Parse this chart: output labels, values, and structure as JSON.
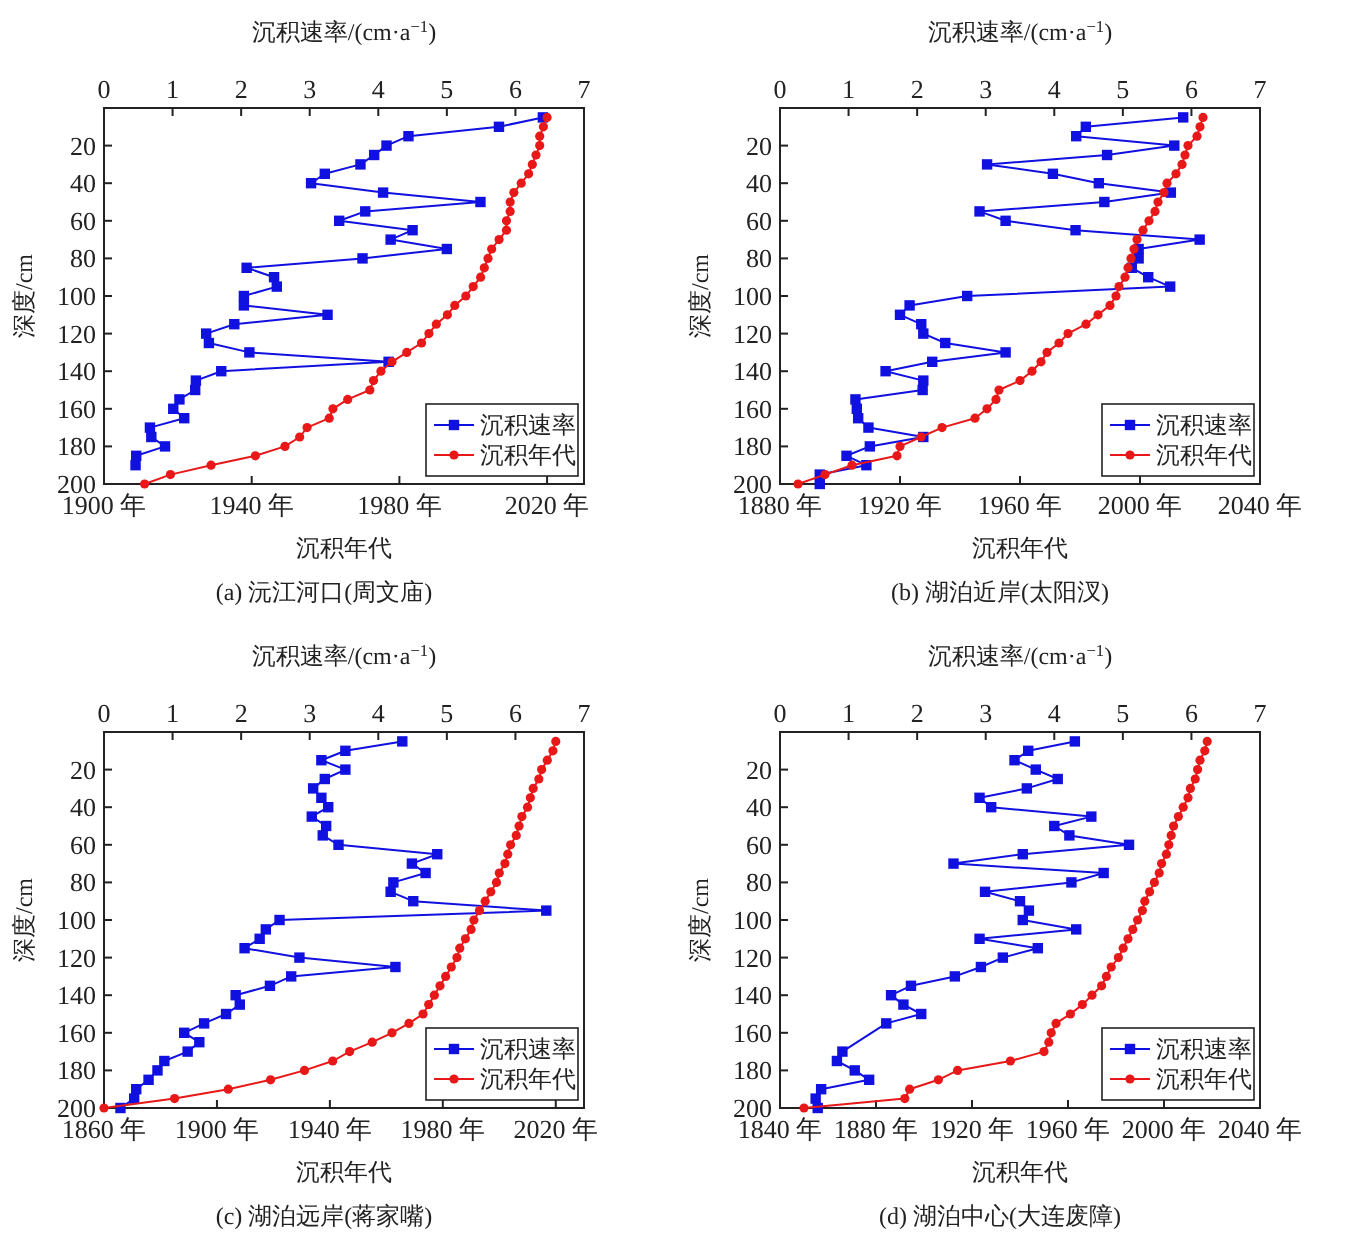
{
  "chart_data": [
    {
      "type": "line",
      "title": "(a) 沅江河口(周文庙)",
      "xlabel": "沉积年代",
      "x2label": "沉积速率/(cm·a$^{−1}$)",
      "ylabel": "深度/cm",
      "xlim": [
        1900,
        2030
      ],
      "xticks": [
        {
          "value": 1900,
          "label": "1900 年"
        },
        {
          "value": 1940,
          "label": "1940 年"
        },
        {
          "value": 1980,
          "label": "1980 年"
        },
        {
          "value": 2020,
          "label": "2020 年"
        }
      ],
      "x2lim": [
        0,
        7
      ],
      "x2ticks": [
        0,
        1,
        2,
        3,
        4,
        5,
        6,
        7
      ],
      "ylim": [
        200,
        0
      ],
      "yticks": [
        20,
        40,
        60,
        80,
        100,
        120,
        140,
        160,
        180,
        200
      ],
      "grid": false,
      "legend": "bottom right",
      "series": [
        {
          "name": "沉积速率",
          "color": "#1010e0",
          "axis": "x2",
          "marker": "square",
          "x": [
            6.4,
            5.76,
            4.44,
            4.12,
            3.94,
            3.74,
            3.22,
            3.02,
            4.07,
            5.49,
            3.81,
            3.43,
            4.5,
            4.18,
            5.0,
            3.77,
            2.08,
            2.48,
            2.52,
            2.04,
            2.04,
            3.26,
            1.9,
            1.49,
            1.53,
            2.12,
            4.15,
            1.71,
            1.34,
            1.33,
            1.1,
            1.01,
            1.17,
            0.67,
            0.69,
            0.89,
            0.47,
            0.46
          ],
          "values": [
            5,
            10,
            15,
            20,
            25,
            30,
            35,
            40,
            45,
            50,
            55,
            60,
            65,
            70,
            75,
            80,
            85,
            90,
            95,
            100,
            105,
            110,
            115,
            120,
            125,
            130,
            135,
            140,
            145,
            150,
            155,
            160,
            165,
            170,
            175,
            180,
            185,
            190
          ]
        },
        {
          "name": "沉积年代",
          "color": "#e81818",
          "marker": "circle",
          "x": [
            2020,
            2019,
            2018,
            2018,
            2017,
            2016,
            2015,
            2013,
            2011,
            2010,
            2010,
            2009,
            2009,
            2007,
            2005,
            2004,
            2003,
            2002,
            2000,
            1998,
            1995,
            1993,
            1990,
            1988,
            1986,
            1982,
            1978,
            1975,
            1973,
            1972,
            1966,
            1962,
            1961,
            1955,
            1953,
            1949,
            1941,
            1929,
            1918,
            1911
          ],
          "values": [
            5,
            10,
            15,
            20,
            25,
            30,
            35,
            40,
            45,
            50,
            55,
            60,
            65,
            70,
            75,
            80,
            85,
            90,
            95,
            100,
            105,
            110,
            115,
            120,
            125,
            130,
            135,
            140,
            145,
            150,
            155,
            160,
            165,
            170,
            175,
            180,
            185,
            190,
            195,
            200
          ]
        }
      ]
    },
    {
      "type": "line",
      "title": "(b) 湖泊近岸(太阳汊)",
      "xlabel": "沉积年代",
      "x2label": "沉积速率/(cm·a$^{−1}$)",
      "ylabel": "深度/cm",
      "xlim": [
        1880,
        2040
      ],
      "xticks": [
        {
          "value": 1880,
          "label": "1880 年"
        },
        {
          "value": 1920,
          "label": "1920 年"
        },
        {
          "value": 1960,
          "label": "1960 年"
        },
        {
          "value": 2000,
          "label": "2000 年"
        },
        {
          "value": 2040,
          "label": "2040 年"
        }
      ],
      "x2lim": [
        0,
        7
      ],
      "x2ticks": [
        0,
        1,
        2,
        3,
        4,
        5,
        6,
        7
      ],
      "ylim": [
        200,
        0
      ],
      "yticks": [
        20,
        40,
        60,
        80,
        100,
        120,
        140,
        160,
        180,
        200
      ],
      "grid": false,
      "legend": "bottom right",
      "series": [
        {
          "name": "沉积速率",
          "color": "#1010e0",
          "axis": "x2",
          "marker": "square",
          "x": [
            5.88,
            4.46,
            4.32,
            5.75,
            4.77,
            3.02,
            3.98,
            4.65,
            5.7,
            4.73,
            2.91,
            3.29,
            4.31,
            6.12,
            5.23,
            5.23,
            5.13,
            5.37,
            5.69,
            2.73,
            1.89,
            1.75,
            2.06,
            2.09,
            2.41,
            3.29,
            2.22,
            1.54,
            2.09,
            2.08,
            1.1,
            1.12,
            1.14,
            1.29,
            2.09,
            1.31,
            0.97,
            1.26,
            0.58,
            0.58
          ],
          "values": [
            5,
            10,
            15,
            20,
            25,
            30,
            35,
            40,
            45,
            50,
            55,
            60,
            65,
            70,
            75,
            80,
            85,
            90,
            95,
            100,
            105,
            110,
            115,
            120,
            125,
            130,
            135,
            140,
            145,
            150,
            155,
            160,
            165,
            170,
            175,
            180,
            185,
            190,
            195,
            200
          ]
        },
        {
          "name": "沉积年代",
          "color": "#e81818",
          "marker": "circle",
          "x": [
            2021,
            2020,
            2019,
            2016,
            2015,
            2014,
            2012,
            2009,
            2008,
            2006,
            2005,
            2003,
            2001,
            1999,
            1998,
            1997,
            1996,
            1995,
            1993,
            1992,
            1990,
            1986,
            1982,
            1976,
            1973,
            1969,
            1967,
            1964,
            1960,
            1953,
            1952,
            1949,
            1945,
            1934,
            1927,
            1920,
            1919,
            1904,
            1895,
            1886
          ],
          "values": [
            5,
            10,
            15,
            20,
            25,
            30,
            35,
            40,
            45,
            50,
            55,
            60,
            65,
            70,
            75,
            80,
            85,
            90,
            95,
            100,
            105,
            110,
            115,
            120,
            125,
            130,
            135,
            140,
            145,
            150,
            155,
            160,
            165,
            170,
            175,
            180,
            185,
            190,
            195,
            200
          ]
        }
      ]
    },
    {
      "type": "line",
      "title": "(c) 湖泊远岸(蒋家嘴)",
      "xlabel": "沉积年代",
      "x2label": "沉积速率/(cm·a$^{−1}$)",
      "ylabel": "深度/cm",
      "xlim": [
        1860,
        2030
      ],
      "xticks": [
        {
          "value": 1860,
          "label": "1860 年"
        },
        {
          "value": 1900,
          "label": "1900 年"
        },
        {
          "value": 1940,
          "label": "1940 年"
        },
        {
          "value": 1980,
          "label": "1980 年"
        },
        {
          "value": 2020,
          "label": "2020 年"
        }
      ],
      "x2lim": [
        0,
        7
      ],
      "x2ticks": [
        0,
        1,
        2,
        3,
        4,
        5,
        6,
        7
      ],
      "ylim": [
        200,
        0
      ],
      "yticks": [
        20,
        40,
        60,
        80,
        100,
        120,
        140,
        160,
        180,
        200
      ],
      "grid": false,
      "legend": "bottom right",
      "series": [
        {
          "name": "沉积速率",
          "color": "#1010e0",
          "axis": "x2",
          "marker": "square",
          "x": [
            4.35,
            3.52,
            3.17,
            3.52,
            3.22,
            3.05,
            3.17,
            3.27,
            3.03,
            3.24,
            3.19,
            3.42,
            4.86,
            4.49,
            4.69,
            4.22,
            4.18,
            4.51,
            6.45,
            2.56,
            2.36,
            2.27,
            2.05,
            2.85,
            4.25,
            2.73,
            2.42,
            1.92,
            1.98,
            1.78,
            1.46,
            1.17,
            1.39,
            1.22,
            0.88,
            0.78,
            0.65,
            0.47,
            0.44,
            0.24
          ],
          "values": [
            5,
            10,
            15,
            20,
            25,
            30,
            35,
            40,
            45,
            50,
            55,
            60,
            65,
            70,
            75,
            80,
            85,
            90,
            95,
            100,
            105,
            110,
            115,
            120,
            125,
            130,
            135,
            140,
            145,
            150,
            155,
            160,
            165,
            170,
            175,
            180,
            185,
            190,
            195,
            200
          ]
        },
        {
          "name": "沉积年代",
          "color": "#e81818",
          "marker": "circle",
          "x": [
            2020,
            2019,
            2017,
            2015,
            2014,
            2012,
            2011,
            2010,
            2008,
            2007,
            2006,
            2004,
            2003,
            2002,
            2000,
            1999,
            1997,
            1995,
            1993,
            1991,
            1990,
            1988,
            1986,
            1985,
            1983,
            1981,
            1979,
            1977,
            1975,
            1973,
            1968,
            1962,
            1955,
            1947,
            1941,
            1931,
            1919,
            1904,
            1885,
            1860
          ],
          "values": [
            5,
            10,
            15,
            20,
            25,
            30,
            35,
            40,
            45,
            50,
            55,
            60,
            65,
            70,
            75,
            80,
            85,
            90,
            95,
            100,
            105,
            110,
            115,
            120,
            125,
            130,
            135,
            140,
            145,
            150,
            155,
            160,
            165,
            170,
            175,
            180,
            185,
            190,
            195,
            200
          ]
        }
      ]
    },
    {
      "type": "line",
      "title": "(d) 湖泊中心(大连废障)",
      "xlabel": "沉积年代",
      "x2label": "沉积速率/(cm·a$^{−1}$)",
      "ylabel": "深度/cm",
      "xlim": [
        1840,
        2040
      ],
      "xticks": [
        {
          "value": 1840,
          "label": "1840 年"
        },
        {
          "value": 1880,
          "label": "1880 年"
        },
        {
          "value": 1920,
          "label": "1920 年"
        },
        {
          "value": 1960,
          "label": "1960 年"
        },
        {
          "value": 2000,
          "label": "2000 年"
        },
        {
          "value": 2040,
          "label": "2040 年"
        }
      ],
      "x2lim": [
        0,
        7
      ],
      "x2ticks": [
        0,
        1,
        2,
        3,
        4,
        5,
        6,
        7
      ],
      "ylim": [
        200,
        0
      ],
      "yticks": [
        20,
        40,
        60,
        80,
        100,
        120,
        140,
        160,
        180,
        200
      ],
      "grid": false,
      "legend": "bottom right",
      "series": [
        {
          "name": "沉积速率",
          "color": "#1010e0",
          "axis": "x2",
          "marker": "square",
          "x": [
            4.3,
            3.62,
            3.42,
            3.73,
            4.05,
            3.6,
            2.91,
            3.08,
            4.54,
            4.0,
            4.22,
            5.09,
            3.54,
            2.53,
            4.72,
            4.25,
            2.99,
            3.5,
            3.63,
            3.54,
            4.32,
            2.91,
            3.76,
            3.25,
            2.93,
            2.55,
            1.91,
            1.62,
            1.8,
            2.06,
            1.55,
            0.91,
            0.83,
            1.09,
            1.3,
            0.6,
            0.52,
            0.55
          ],
          "values": [
            5,
            10,
            15,
            20,
            25,
            30,
            35,
            40,
            45,
            50,
            55,
            60,
            65,
            70,
            75,
            80,
            85,
            90,
            95,
            100,
            105,
            110,
            115,
            120,
            125,
            130,
            135,
            140,
            145,
            150,
            155,
            170,
            175,
            180,
            185,
            190,
            195,
            200
          ]
        },
        {
          "name": "沉积年代",
          "color": "#e81818",
          "marker": "circle",
          "x": [
            2018,
            2017,
            2015,
            2014,
            2013,
            2011,
            2010,
            2008,
            2006,
            2004,
            2003,
            2002,
            2001,
            1999,
            1998,
            1996,
            1994,
            1992,
            1991,
            1989,
            1987,
            1985,
            1983,
            1981,
            1978,
            1976,
            1974,
            1970,
            1966,
            1961,
            1955,
            1953,
            1952,
            1950,
            1936,
            1914,
            1906,
            1894,
            1892,
            1850
          ],
          "values": [
            5,
            10,
            15,
            20,
            25,
            30,
            35,
            40,
            45,
            50,
            55,
            60,
            65,
            70,
            75,
            80,
            85,
            90,
            95,
            100,
            105,
            110,
            115,
            120,
            125,
            130,
            135,
            140,
            145,
            150,
            155,
            160,
            165,
            170,
            175,
            180,
            185,
            190,
            195,
            200
          ]
        }
      ]
    }
  ]
}
